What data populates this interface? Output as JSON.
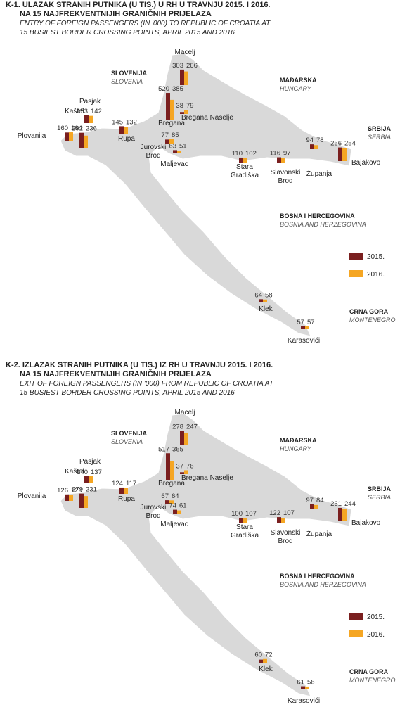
{
  "maps": [
    {
      "title": "K-1. ULAZAK STRANIH PUTNIKA (U TIS.) U RH U TRAVNJU 2015. I 2016.",
      "title_line2": "NA 15 NAJFREKVENTNIJIH GRANIČNIH PRIJELAZA",
      "subtitle": "ENTRY OF FOREIGN PASSENGERS (IN '000) TO REPUBLIC OF CROATIA AT",
      "subtitle_line2": "15 BUSIEST BORDER CROSSING POINTS, APRIL 2015 AND 2016",
      "countries": [
        {
          "name": "SLOVENIJA",
          "name_en": "SLOVENIA"
        },
        {
          "name": "MAĐARSKA",
          "name_en": "HUNGARY"
        },
        {
          "name": "SRBIJA",
          "name_en": "SERBIA"
        },
        {
          "name": "BOSNA I HERCEGOVINA",
          "name_en": "BOSNIA AND HERZEGOVINA"
        },
        {
          "name": "CRNA GORA",
          "name_en": "MONTENEGRO"
        }
      ],
      "series": [
        {
          "name": "2015.",
          "color": "#7a1f1f"
        },
        {
          "name": "2016.",
          "color": "#f5a623"
        }
      ],
      "points": [
        {
          "name": [
            "Macelj"
          ],
          "values": [
            303,
            266
          ]
        },
        {
          "name": [
            "Bregana"
          ],
          "values": [
            520,
            385
          ]
        },
        {
          "name": [
            "Bregana Naselje"
          ],
          "values": [
            38,
            79
          ]
        },
        {
          "name": [
            "Pasjak"
          ],
          "values": [
            153,
            142
          ]
        },
        {
          "name": [
            "Kaštel"
          ],
          "values": [
            292,
            236
          ]
        },
        {
          "name": [
            "Plovanija"
          ],
          "values": [
            160,
            164
          ]
        },
        {
          "name": [
            "Rupa"
          ],
          "values": [
            145,
            132
          ]
        },
        {
          "name": [
            "Jurovski",
            "Brod"
          ],
          "values": [
            77,
            85
          ]
        },
        {
          "name": [
            "Maljevac"
          ],
          "values": [
            63,
            51
          ]
        },
        {
          "name": [
            "Stara",
            "Gradiška"
          ],
          "values": [
            110,
            102
          ]
        },
        {
          "name": [
            "Slavonski",
            "Brod"
          ],
          "values": [
            116,
            97
          ]
        },
        {
          "name": [
            "Županja"
          ],
          "values": [
            94,
            78
          ]
        },
        {
          "name": [
            "Bajakovo"
          ],
          "values": [
            266,
            254
          ]
        },
        {
          "name": [
            "Klek"
          ],
          "values": [
            64,
            58
          ]
        },
        {
          "name": [
            "Karasovići"
          ],
          "values": [
            57,
            57
          ]
        }
      ]
    },
    {
      "title": "K-2. IZLAZAK STRANIH PUTNIKA (U TIS.) IZ RH U TRAVNJU 2015. I 2016.",
      "title_line2": "NA 15 NAJFREKVENTNIJIH GRANIČNIH PRIJELAZA",
      "subtitle": "EXIT OF FOREIGN PASSENGERS (IN '000) FROM REPUBLIC OF CROATIA AT",
      "subtitle_line2": "15 BUSIEST BORDER CROSSING POINTS, APRIL 2015 AND 2016",
      "countries": [
        {
          "name": "SLOVENIJA",
          "name_en": "SLOVENIA"
        },
        {
          "name": "MAĐARSKA",
          "name_en": "HUNGARY"
        },
        {
          "name": "SRBIJA",
          "name_en": "SERBIA"
        },
        {
          "name": "BOSNA I HERCEGOVINA",
          "name_en": "BOSNIA AND HERZEGOVINA"
        },
        {
          "name": "CRNA GORA",
          "name_en": "MONTENEGRO"
        }
      ],
      "series": [
        {
          "name": "2015.",
          "color": "#7a1f1f"
        },
        {
          "name": "2016.",
          "color": "#f5a623"
        }
      ],
      "points": [
        {
          "name": [
            "Macelj"
          ],
          "values": [
            278,
            247
          ]
        },
        {
          "name": [
            "Bregana"
          ],
          "values": [
            517,
            365
          ]
        },
        {
          "name": [
            "Bregana Naselje"
          ],
          "values": [
            37,
            76
          ]
        },
        {
          "name": [
            "Pasjak"
          ],
          "values": [
            140,
            137
          ]
        },
        {
          "name": [
            "Kaštel"
          ],
          "values": [
            279,
            231
          ]
        },
        {
          "name": [
            "Plovanija"
          ],
          "values": [
            126,
            120
          ]
        },
        {
          "name": [
            "Rupa"
          ],
          "values": [
            124,
            117
          ]
        },
        {
          "name": [
            "Jurovski",
            "Brod"
          ],
          "values": [
            67,
            64
          ]
        },
        {
          "name": [
            "Maljevac"
          ],
          "values": [
            74,
            61
          ]
        },
        {
          "name": [
            "Stara",
            "Gradiška"
          ],
          "values": [
            100,
            107
          ]
        },
        {
          "name": [
            "Slavonski",
            "Brod"
          ],
          "values": [
            122,
            107
          ]
        },
        {
          "name": [
            "Županja"
          ],
          "values": [
            97,
            84
          ]
        },
        {
          "name": [
            "Bajakovo"
          ],
          "values": [
            261,
            244
          ]
        },
        {
          "name": [
            "Klek"
          ],
          "values": [
            60,
            72
          ]
        },
        {
          "name": [
            "Karasovići"
          ],
          "values": [
            61,
            56
          ]
        }
      ]
    }
  ]
}
